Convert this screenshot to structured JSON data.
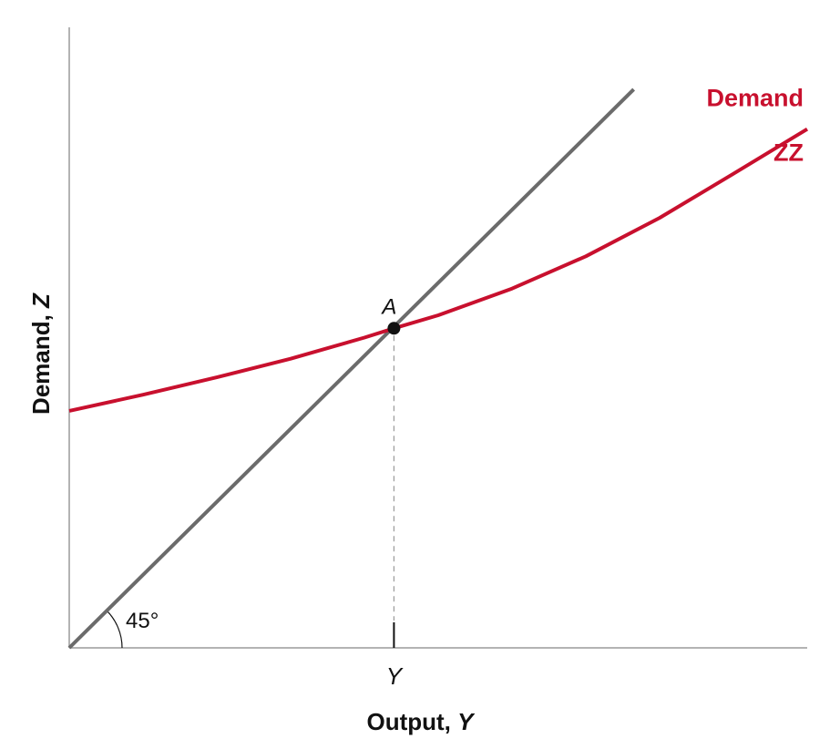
{
  "chart_data": {
    "type": "line",
    "title": "",
    "xlabel": {
      "prefix": "Output, ",
      "var": "Y"
    },
    "ylabel": {
      "prefix": "Demand, ",
      "var": "Z"
    },
    "xlim": [
      0,
      100
    ],
    "ylim": [
      0,
      100
    ],
    "grid": false,
    "x_ticks": [
      {
        "value": 44,
        "label": "Y"
      }
    ],
    "series": [
      {
        "name": "45° line",
        "color": "#6b6b6b",
        "x": [
          0,
          76.5
        ],
        "y": [
          0,
          90
        ]
      },
      {
        "name": "Demand ZZ",
        "color": "#c8102e",
        "x": [
          0,
          10,
          20,
          30,
          40,
          44,
          50,
          60,
          70,
          80,
          90,
          100
        ],
        "y": [
          38.2,
          40.8,
          43.6,
          46.6,
          50.0,
          51.5,
          53.6,
          57.9,
          63.1,
          69.3,
          76.4,
          83.6
        ]
      }
    ],
    "annotations": {
      "curve_label_line1": "Demand",
      "curve_label_line2": "ZZ",
      "point_label": "A",
      "point": {
        "x": 44,
        "y": 51.5
      },
      "angle_label": "45°"
    }
  }
}
